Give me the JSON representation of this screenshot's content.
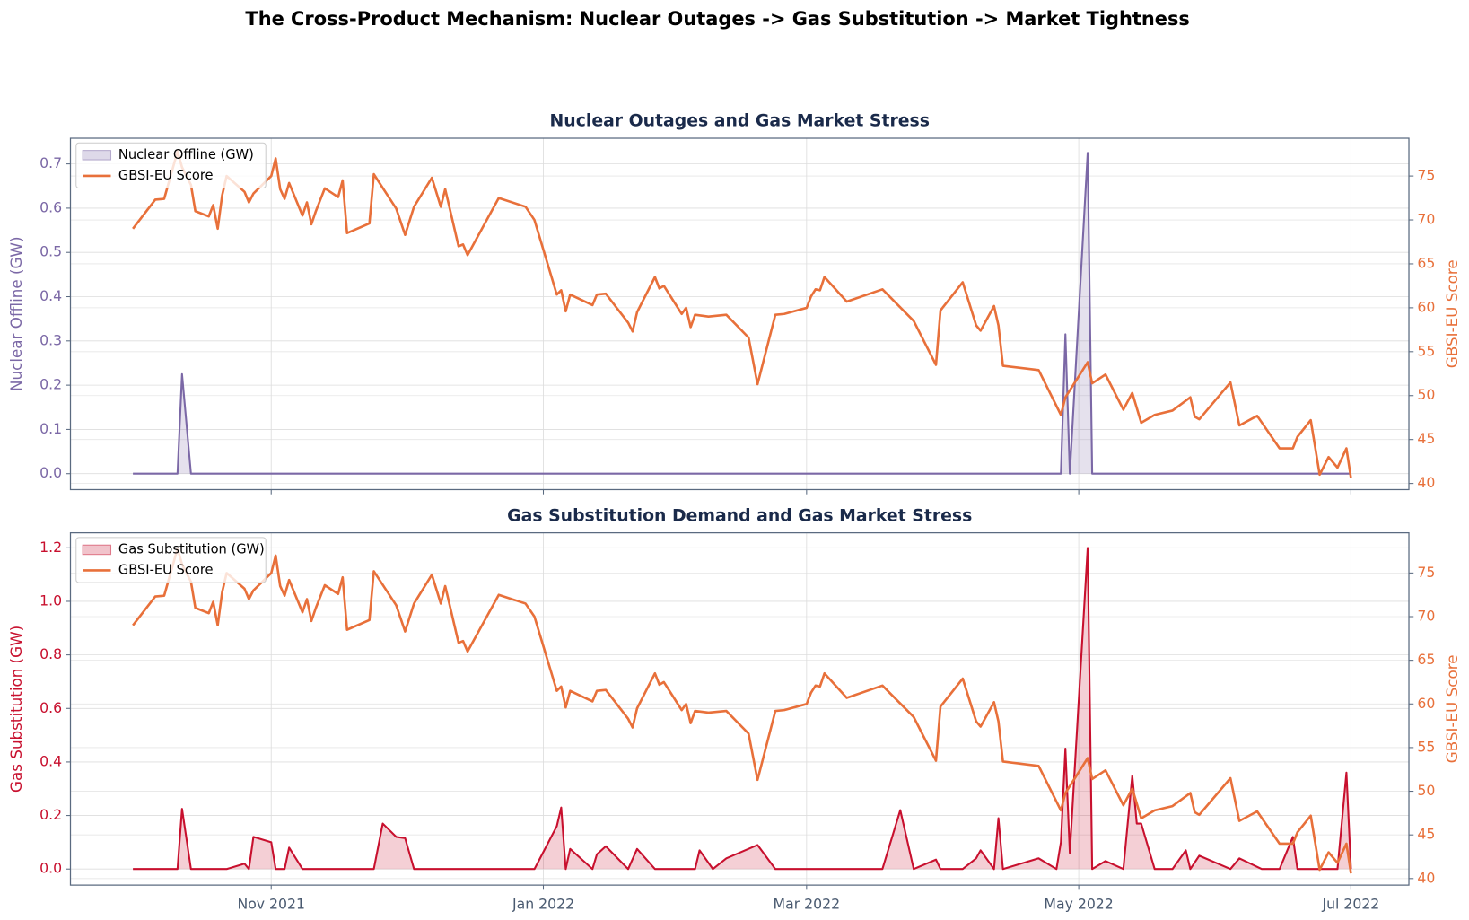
{
  "title": "The Cross-Product Mechanism: Nuclear Outages -> Gas Substitution -> Market Tightness",
  "chart_data": [
    {
      "type": "line",
      "title": "Nuclear Outages and Gas Market Stress",
      "ylabel": "Nuclear Offline (GW)",
      "y2label": "GBSI-EU Score",
      "xlim": [
        "2021-09-17",
        "2022-07-14"
      ],
      "xticks": [
        {
          "value": "2021-11-01",
          "label": "Nov 2021"
        },
        {
          "value": "2022-01-01",
          "label": "Jan 2022"
        },
        {
          "value": "2022-03-01",
          "label": "Mar 2022"
        },
        {
          "value": "2022-05-01",
          "label": "May 2022"
        },
        {
          "value": "2022-07-01",
          "label": "Jul 2022"
        }
      ],
      "ylim": [
        -0.036,
        0.758
      ],
      "yticks": [
        {
          "value": 0,
          "label": "0.0"
        },
        0.1,
        0.2,
        0.3,
        0.4,
        0.5,
        0.6,
        0.7
      ],
      "y2lim": [
        39.3,
        79.3
      ],
      "y2ticks": [
        40,
        45,
        50,
        55,
        60,
        65,
        70,
        75
      ],
      "grid": true,
      "legend": "upper left",
      "ycolor": "#7b68a6",
      "series": [
        {
          "name": "Nuclear Offline (GW)",
          "color": "#7b68a6",
          "fill": true,
          "axis": "y",
          "x": [
            "2021-10-01",
            "2021-10-11",
            "2021-10-12",
            "2021-10-14",
            "2022-04-27",
            "2022-04-28",
            "2022-04-29",
            "2022-05-03",
            "2022-05-04",
            "2022-07-01"
          ],
          "values": [
            0,
            0,
            0.225,
            0,
            0,
            0.315,
            0,
            0.725,
            0,
            0
          ]
        },
        {
          "name": "GBSI-EU Score",
          "color": "#e8703a",
          "fill": false,
          "axis": "y2",
          "x": [
            "2021-10-01",
            "2021-10-06",
            "2021-10-08",
            "2021-10-11",
            "2021-10-12",
            "2021-10-14",
            "2021-10-15",
            "2021-10-18",
            "2021-10-19",
            "2021-10-20",
            "2021-10-21",
            "2021-10-22",
            "2021-10-26",
            "2021-10-27",
            "2021-10-28",
            "2021-11-01",
            "2021-11-02",
            "2021-11-03",
            "2021-11-04",
            "2021-11-05",
            "2021-11-08",
            "2021-11-09",
            "2021-11-10",
            "2021-11-11",
            "2021-11-13",
            "2021-11-16",
            "2021-11-17",
            "2021-11-18",
            "2021-11-23",
            "2021-11-24",
            "2021-11-29",
            "2021-12-01",
            "2021-12-03",
            "2021-12-07",
            "2021-12-09",
            "2021-12-10",
            "2021-12-13",
            "2021-12-14",
            "2021-12-15",
            "2021-12-22",
            "2021-12-28",
            "2021-12-30",
            "2022-01-04",
            "2022-01-05",
            "2022-01-06",
            "2022-01-07",
            "2022-01-12",
            "2022-01-13",
            "2022-01-15",
            "2022-01-20",
            "2022-01-21",
            "2022-01-22",
            "2022-01-26",
            "2022-01-27",
            "2022-01-28",
            "2022-02-01",
            "2022-02-02",
            "2022-02-03",
            "2022-02-04",
            "2022-02-07",
            "2022-02-11",
            "2022-02-16",
            "2022-02-18",
            "2022-02-22",
            "2022-02-24",
            "2022-03-01",
            "2022-03-02",
            "2022-03-03",
            "2022-03-04",
            "2022-03-05",
            "2022-03-10",
            "2022-03-18",
            "2022-03-25",
            "2022-03-30",
            "2022-03-31",
            "2022-04-05",
            "2022-04-08",
            "2022-04-09",
            "2022-04-12",
            "2022-04-13",
            "2022-04-14",
            "2022-04-22",
            "2022-04-27",
            "2022-04-28",
            "2022-05-03",
            "2022-05-04",
            "2022-05-07",
            "2022-05-11",
            "2022-05-13",
            "2022-05-15",
            "2022-05-18",
            "2022-05-22",
            "2022-05-26",
            "2022-05-27",
            "2022-05-28",
            "2022-06-04",
            "2022-06-06",
            "2022-06-10",
            "2022-06-15",
            "2022-06-18",
            "2022-06-19",
            "2022-06-22",
            "2022-06-24",
            "2022-06-26",
            "2022-06-28",
            "2022-06-30",
            "2022-07-01"
          ],
          "values": [
            69,
            72.3,
            72.4,
            77.8,
            76,
            74,
            71,
            70.4,
            71.7,
            69,
            72.8,
            75,
            73.2,
            72,
            73,
            75,
            77,
            73.5,
            72.4,
            74.2,
            70.5,
            72,
            69.5,
            71,
            73.6,
            72.6,
            74.5,
            68.5,
            69.6,
            75.2,
            71.3,
            68.3,
            71.5,
            74.8,
            71.5,
            73.5,
            67,
            67.2,
            66,
            72.5,
            71.5,
            70,
            61.5,
            62,
            59.6,
            61.5,
            60.3,
            61.5,
            61.6,
            58.3,
            57.3,
            59.5,
            63.5,
            62.2,
            62.5,
            59.3,
            60,
            57.8,
            59.2,
            59,
            59.2,
            56.6,
            51.3,
            59.2,
            59.3,
            60,
            61.3,
            62.1,
            62,
            63.5,
            60.7,
            62.1,
            58.5,
            53.5,
            59.7,
            62.9,
            58,
            57.4,
            60.2,
            58,
            53.4,
            52.9,
            47.8,
            49.8,
            53.8,
            51.4,
            52.4,
            48.4,
            50.3,
            46.9,
            47.8,
            48.3,
            49.8,
            47.6,
            47.3,
            51.5,
            46.6,
            47.7,
            44,
            44,
            45.3,
            47.2,
            41,
            43,
            41.8,
            44,
            40.6
          ]
        }
      ]
    },
    {
      "type": "line",
      "title": "Gas Substitution Demand and Gas Market Stress",
      "ylabel": "Gas Substitution (GW)",
      "y2label": "GBSI-EU Score",
      "xlim": [
        "2021-09-17",
        "2022-07-14"
      ],
      "xticks": [
        {
          "value": "2021-11-01",
          "label": "Nov 2021"
        },
        {
          "value": "2022-01-01",
          "label": "Jan 2022"
        },
        {
          "value": "2022-03-01",
          "label": "Mar 2022"
        },
        {
          "value": "2022-05-01",
          "label": "May 2022"
        },
        {
          "value": "2022-07-01",
          "label": "Jul 2022"
        }
      ],
      "ylim": [
        -0.06,
        1.256
      ],
      "yticks": [
        {
          "value": 0,
          "label": "0.0"
        },
        0.2,
        0.4,
        0.6,
        0.8,
        {
          "value": 1,
          "label": "1.0"
        },
        1.2
      ],
      "y2lim": [
        39.25,
        79.6
      ],
      "y2ticks": [
        40,
        45,
        50,
        55,
        60,
        65,
        70,
        75
      ],
      "grid": true,
      "legend": "upper left",
      "ycolor": "#c8102e",
      "series": [
        {
          "name": "Gas Substitution (GW)",
          "color": "#c8102e",
          "fill": true,
          "axis": "y",
          "x": [
            "2021-10-01",
            "2021-10-11",
            "2021-10-12",
            "2021-10-14",
            "2021-10-22",
            "2021-10-26",
            "2021-10-27",
            "2021-10-28",
            "2021-11-01",
            "2021-11-02",
            "2021-11-04",
            "2021-11-05",
            "2021-11-08",
            "2021-11-24",
            "2021-11-26",
            "2021-11-29",
            "2021-12-01",
            "2021-12-03",
            "2021-12-30",
            "2022-01-04",
            "2022-01-05",
            "2022-01-06",
            "2022-01-07",
            "2022-01-12",
            "2022-01-13",
            "2022-01-15",
            "2022-01-20",
            "2022-01-22",
            "2022-01-26",
            "2022-02-04",
            "2022-02-05",
            "2022-02-08",
            "2022-02-11",
            "2022-02-18",
            "2022-02-22",
            "2022-03-18",
            "2022-03-22",
            "2022-03-25",
            "2022-03-30",
            "2022-03-31",
            "2022-04-05",
            "2022-04-08",
            "2022-04-09",
            "2022-04-12",
            "2022-04-13",
            "2022-04-14",
            "2022-04-22",
            "2022-04-26",
            "2022-04-27",
            "2022-04-28",
            "2022-04-29",
            "2022-05-03",
            "2022-05-04",
            "2022-05-07",
            "2022-05-11",
            "2022-05-13",
            "2022-05-14",
            "2022-05-15",
            "2022-05-18",
            "2022-05-22",
            "2022-05-25",
            "2022-05-26",
            "2022-05-28",
            "2022-06-04",
            "2022-06-06",
            "2022-06-11",
            "2022-06-15",
            "2022-06-18",
            "2022-06-19",
            "2022-06-28",
            "2022-06-30",
            "2022-07-01"
          ],
          "values": [
            0,
            0,
            0.225,
            0,
            0,
            0.02,
            0,
            0.12,
            0.1,
            0,
            0,
            0.08,
            0,
            0,
            0.17,
            0.12,
            0.115,
            0,
            0,
            0.16,
            0.23,
            0,
            0.075,
            0,
            0.055,
            0.085,
            0,
            0.075,
            0,
            0,
            0.07,
            0,
            0.04,
            0.09,
            0,
            0,
            0.22,
            0,
            0.035,
            0,
            0,
            0.04,
            0.07,
            0,
            0.19,
            0,
            0.04,
            0,
            0.1,
            0.45,
            0.06,
            1.2,
            0,
            0.03,
            0,
            0.35,
            0.17,
            0.17,
            0,
            0,
            0.07,
            0,
            0.05,
            0,
            0.04,
            0,
            0,
            0.12,
            0,
            0,
            0.36,
            0
          ]
        },
        {
          "name": "GBSI-EU Score",
          "color": "#e8703a",
          "fill": false,
          "axis": "y2",
          "x": [
            "2021-10-01",
            "2021-10-06",
            "2021-10-08",
            "2021-10-11",
            "2021-10-12",
            "2021-10-14",
            "2021-10-15",
            "2021-10-18",
            "2021-10-19",
            "2021-10-20",
            "2021-10-21",
            "2021-10-22",
            "2021-10-26",
            "2021-10-27",
            "2021-10-28",
            "2021-11-01",
            "2021-11-02",
            "2021-11-03",
            "2021-11-04",
            "2021-11-05",
            "2021-11-08",
            "2021-11-09",
            "2021-11-10",
            "2021-11-11",
            "2021-11-13",
            "2021-11-16",
            "2021-11-17",
            "2021-11-18",
            "2021-11-23",
            "2021-11-24",
            "2021-11-29",
            "2021-12-01",
            "2021-12-03",
            "2021-12-07",
            "2021-12-09",
            "2021-12-10",
            "2021-12-13",
            "2021-12-14",
            "2021-12-15",
            "2021-12-22",
            "2021-12-28",
            "2021-12-30",
            "2022-01-04",
            "2022-01-05",
            "2022-01-06",
            "2022-01-07",
            "2022-01-12",
            "2022-01-13",
            "2022-01-15",
            "2022-01-20",
            "2022-01-21",
            "2022-01-22",
            "2022-01-26",
            "2022-01-27",
            "2022-01-28",
            "2022-02-01",
            "2022-02-02",
            "2022-02-03",
            "2022-02-04",
            "2022-02-07",
            "2022-02-11",
            "2022-02-16",
            "2022-02-18",
            "2022-02-22",
            "2022-02-24",
            "2022-03-01",
            "2022-03-02",
            "2022-03-03",
            "2022-03-04",
            "2022-03-05",
            "2022-03-10",
            "2022-03-18",
            "2022-03-25",
            "2022-03-30",
            "2022-03-31",
            "2022-04-05",
            "2022-04-08",
            "2022-04-09",
            "2022-04-12",
            "2022-04-13",
            "2022-04-14",
            "2022-04-22",
            "2022-04-27",
            "2022-04-28",
            "2022-05-03",
            "2022-05-04",
            "2022-05-07",
            "2022-05-11",
            "2022-05-13",
            "2022-05-15",
            "2022-05-18",
            "2022-05-22",
            "2022-05-26",
            "2022-05-27",
            "2022-05-28",
            "2022-06-04",
            "2022-06-06",
            "2022-06-10",
            "2022-06-15",
            "2022-06-18",
            "2022-06-19",
            "2022-06-22",
            "2022-06-24",
            "2022-06-26",
            "2022-06-28",
            "2022-06-30",
            "2022-07-01"
          ],
          "values": [
            69,
            72.3,
            72.4,
            77.8,
            76,
            74,
            71,
            70.4,
            71.7,
            69,
            72.8,
            75,
            73.2,
            72,
            73,
            75,
            77,
            73.5,
            72.4,
            74.2,
            70.5,
            72,
            69.5,
            71,
            73.6,
            72.6,
            74.5,
            68.5,
            69.6,
            75.2,
            71.3,
            68.3,
            71.5,
            74.8,
            71.5,
            73.5,
            67,
            67.2,
            66,
            72.5,
            71.5,
            70,
            61.5,
            62,
            59.6,
            61.5,
            60.3,
            61.5,
            61.6,
            58.3,
            57.3,
            59.5,
            63.5,
            62.2,
            62.5,
            59.3,
            60,
            57.8,
            59.2,
            59,
            59.2,
            56.6,
            51.3,
            59.2,
            59.3,
            60,
            61.3,
            62.1,
            62,
            63.5,
            60.7,
            62.1,
            58.5,
            53.5,
            59.7,
            62.9,
            58,
            57.4,
            60.2,
            58,
            53.4,
            52.9,
            47.8,
            49.8,
            53.8,
            51.4,
            52.4,
            48.4,
            50.3,
            46.9,
            47.8,
            48.3,
            49.8,
            47.6,
            47.3,
            51.5,
            46.6,
            47.7,
            44,
            44,
            45.3,
            47.2,
            41,
            43,
            41.8,
            44,
            40.6
          ]
        }
      ]
    }
  ]
}
